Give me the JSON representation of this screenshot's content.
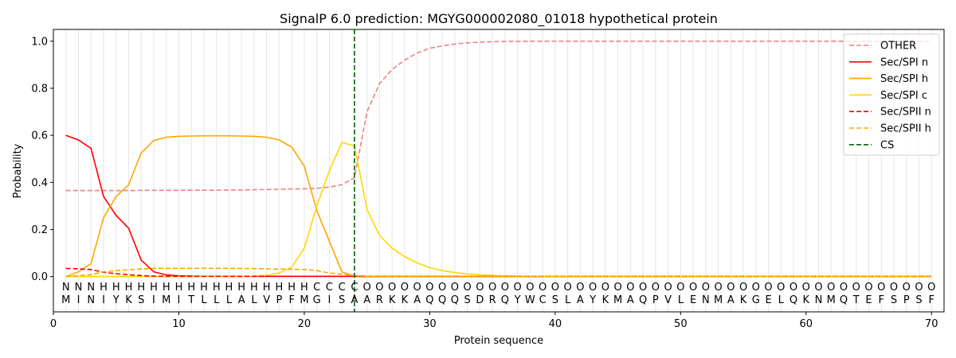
{
  "chart_data": {
    "type": "line",
    "title": "SignalP 6.0 prediction: MGYG000002080_01018 hypothetical protein",
    "xlabel": "Protein sequence",
    "ylabel": "Probability",
    "xlim": [
      0,
      71
    ],
    "ylim": [
      -0.15,
      1.05
    ],
    "x_ticks": [
      "0",
      "10",
      "20",
      "30",
      "40",
      "50",
      "60",
      "70"
    ],
    "y_ticks": [
      "0.0",
      "0.2",
      "0.4",
      "0.6",
      "0.8",
      "1.0"
    ],
    "legend_position": "top-right",
    "sequence": [
      "M",
      "I",
      "N",
      "I",
      "Y",
      "K",
      "S",
      "I",
      "M",
      "I",
      "T",
      "L",
      "L",
      "L",
      "A",
      "L",
      "V",
      "P",
      "F",
      "M",
      "G",
      "I",
      "S",
      "A",
      "A",
      "R",
      "K",
      "K",
      "A",
      "Q",
      "Q",
      "Q",
      "S",
      "D",
      "R",
      "Q",
      "Y",
      "W",
      "C",
      "S",
      "L",
      "A",
      "Y",
      "K",
      "M",
      "A",
      "Q",
      "P",
      "V",
      "L",
      "E",
      "N",
      "M",
      "A",
      "K",
      "G",
      "E",
      "L",
      "Q",
      "K",
      "N",
      "M",
      "Q",
      "T",
      "E",
      "F",
      "S",
      "P",
      "S",
      "F"
    ],
    "regions": [
      "N",
      "N",
      "N",
      "H",
      "H",
      "H",
      "H",
      "H",
      "H",
      "H",
      "H",
      "H",
      "H",
      "H",
      "H",
      "H",
      "H",
      "H",
      "H",
      "H",
      "C",
      "C",
      "C",
      "C",
      "O",
      "O",
      "O",
      "O",
      "O",
      "O",
      "O",
      "O",
      "O",
      "O",
      "O",
      "O",
      "O",
      "O",
      "O",
      "O",
      "O",
      "O",
      "O",
      "O",
      "O",
      "O",
      "O",
      "O",
      "O",
      "O",
      "O",
      "O",
      "O",
      "O",
      "O",
      "O",
      "O",
      "O",
      "O",
      "O",
      "O",
      "O",
      "O",
      "O",
      "O",
      "O",
      "O",
      "O",
      "O",
      "O"
    ],
    "region_colors": {
      "N": "#ff0000",
      "H": "#ffa500",
      "C": "#ffd700",
      "O": "#808080"
    },
    "cleavage_site": 24,
    "series": [
      {
        "name": "OTHER",
        "color": "#f08080",
        "dash": "dashed",
        "values": [
          0.365,
          0.365,
          0.365,
          0.365,
          0.365,
          0.365,
          0.366,
          0.366,
          0.366,
          0.366,
          0.367,
          0.367,
          0.367,
          0.368,
          0.368,
          0.369,
          0.37,
          0.371,
          0.372,
          0.373,
          0.375,
          0.38,
          0.39,
          0.42,
          0.7,
          0.82,
          0.88,
          0.92,
          0.95,
          0.97,
          0.98,
          0.988,
          0.993,
          0.996,
          0.998,
          0.999,
          0.999,
          1.0,
          1.0,
          1.0,
          1.0,
          1.0,
          1.0,
          1.0,
          1.0,
          1.0,
          1.0,
          1.0,
          1.0,
          1.0,
          1.0,
          1.0,
          1.0,
          1.0,
          1.0,
          1.0,
          1.0,
          1.0,
          1.0,
          1.0,
          1.0,
          1.0,
          1.0,
          0.999,
          0.999,
          0.999,
          0.999,
          0.999,
          0.999,
          0.999
        ]
      },
      {
        "name": "Sec/SPI n",
        "color": "#ff0000",
        "dash": "solid",
        "values": [
          0.6,
          0.58,
          0.545,
          0.34,
          0.26,
          0.205,
          0.07,
          0.02,
          0.007,
          0.003,
          0.002,
          0.001,
          0.001,
          0.001,
          0.001,
          0.001,
          0.001,
          0.001,
          0.001,
          0.001,
          0.001,
          0.001,
          0.001,
          0.001,
          0,
          0,
          0,
          0,
          0,
          0,
          0,
          0,
          0,
          0,
          0,
          0,
          0,
          0,
          0,
          0,
          0,
          0,
          0,
          0,
          0,
          0,
          0,
          0,
          0,
          0,
          0,
          0,
          0,
          0,
          0,
          0,
          0,
          0,
          0,
          0,
          0,
          0,
          0,
          0,
          0,
          0,
          0,
          0,
          0,
          0
        ]
      },
      {
        "name": "Sec/SPI h",
        "color": "#ffa500",
        "dash": "solid",
        "values": [
          0.0,
          0.02,
          0.055,
          0.25,
          0.34,
          0.39,
          0.525,
          0.578,
          0.592,
          0.596,
          0.597,
          0.598,
          0.598,
          0.598,
          0.597,
          0.596,
          0.592,
          0.58,
          0.55,
          0.47,
          0.28,
          0.15,
          0.02,
          0.003,
          0.001,
          0,
          0,
          0,
          0,
          0,
          0,
          0,
          0,
          0,
          0,
          0,
          0,
          0,
          0,
          0,
          0,
          0,
          0,
          0,
          0,
          0,
          0,
          0,
          0,
          0,
          0,
          0,
          0,
          0,
          0,
          0,
          0,
          0,
          0,
          0,
          0,
          0,
          0,
          0,
          0,
          0,
          0,
          0,
          0,
          0
        ]
      },
      {
        "name": "Sec/SPI c",
        "color": "#ffd700",
        "dash": "solid",
        "values": [
          0,
          0,
          0,
          0,
          0,
          0,
          0,
          0,
          0,
          0,
          0,
          0,
          0,
          0,
          0,
          0.002,
          0.005,
          0.015,
          0.04,
          0.12,
          0.3,
          0.45,
          0.57,
          0.555,
          0.285,
          0.175,
          0.12,
          0.085,
          0.058,
          0.038,
          0.025,
          0.017,
          0.011,
          0.007,
          0.005,
          0.003,
          0.002,
          0.001,
          0.001,
          0.001,
          0,
          0,
          0,
          0,
          0,
          0,
          0,
          0,
          0,
          0,
          0,
          0,
          0,
          0,
          0,
          0,
          0,
          0,
          0,
          0,
          0,
          0,
          0,
          0,
          0,
          0,
          0,
          0,
          0,
          0
        ]
      },
      {
        "name": "Sec/SPII n",
        "color": "#ff0000",
        "dash": "dashed",
        "values": [
          0.035,
          0.033,
          0.03,
          0.018,
          0.012,
          0.008,
          0.004,
          0.002,
          0.001,
          0.001,
          0.001,
          0.001,
          0.001,
          0.001,
          0.001,
          0.001,
          0.001,
          0.001,
          0.001,
          0.001,
          0.001,
          0.001,
          0.001,
          0.001,
          0,
          0,
          0,
          0,
          0,
          0,
          0,
          0,
          0,
          0,
          0,
          0,
          0,
          0,
          0,
          0,
          0,
          0,
          0,
          0,
          0,
          0,
          0,
          0,
          0,
          0,
          0,
          0,
          0,
          0,
          0,
          0,
          0,
          0,
          0,
          0,
          0,
          0,
          0,
          0,
          0,
          0,
          0,
          0,
          0,
          0
        ]
      },
      {
        "name": "Sec/SPII h",
        "color": "#ffa500",
        "dash": "dashed",
        "values": [
          0.0,
          0.003,
          0.008,
          0.02,
          0.025,
          0.028,
          0.033,
          0.035,
          0.035,
          0.035,
          0.035,
          0.035,
          0.035,
          0.035,
          0.034,
          0.034,
          0.033,
          0.032,
          0.031,
          0.03,
          0.025,
          0.015,
          0.01,
          0.004,
          0.001,
          0,
          0,
          0,
          0,
          0,
          0,
          0,
          0,
          0,
          0,
          0,
          0,
          0,
          0,
          0,
          0,
          0,
          0,
          0,
          0,
          0,
          0,
          0,
          0,
          0,
          0,
          0,
          0,
          0,
          0,
          0,
          0,
          0,
          0,
          0,
          0,
          0,
          0,
          0,
          0,
          0,
          0,
          0,
          0,
          0
        ]
      },
      {
        "name": "CS",
        "color": "#006400",
        "dash": "dashed",
        "vertical_at": 24
      }
    ]
  }
}
